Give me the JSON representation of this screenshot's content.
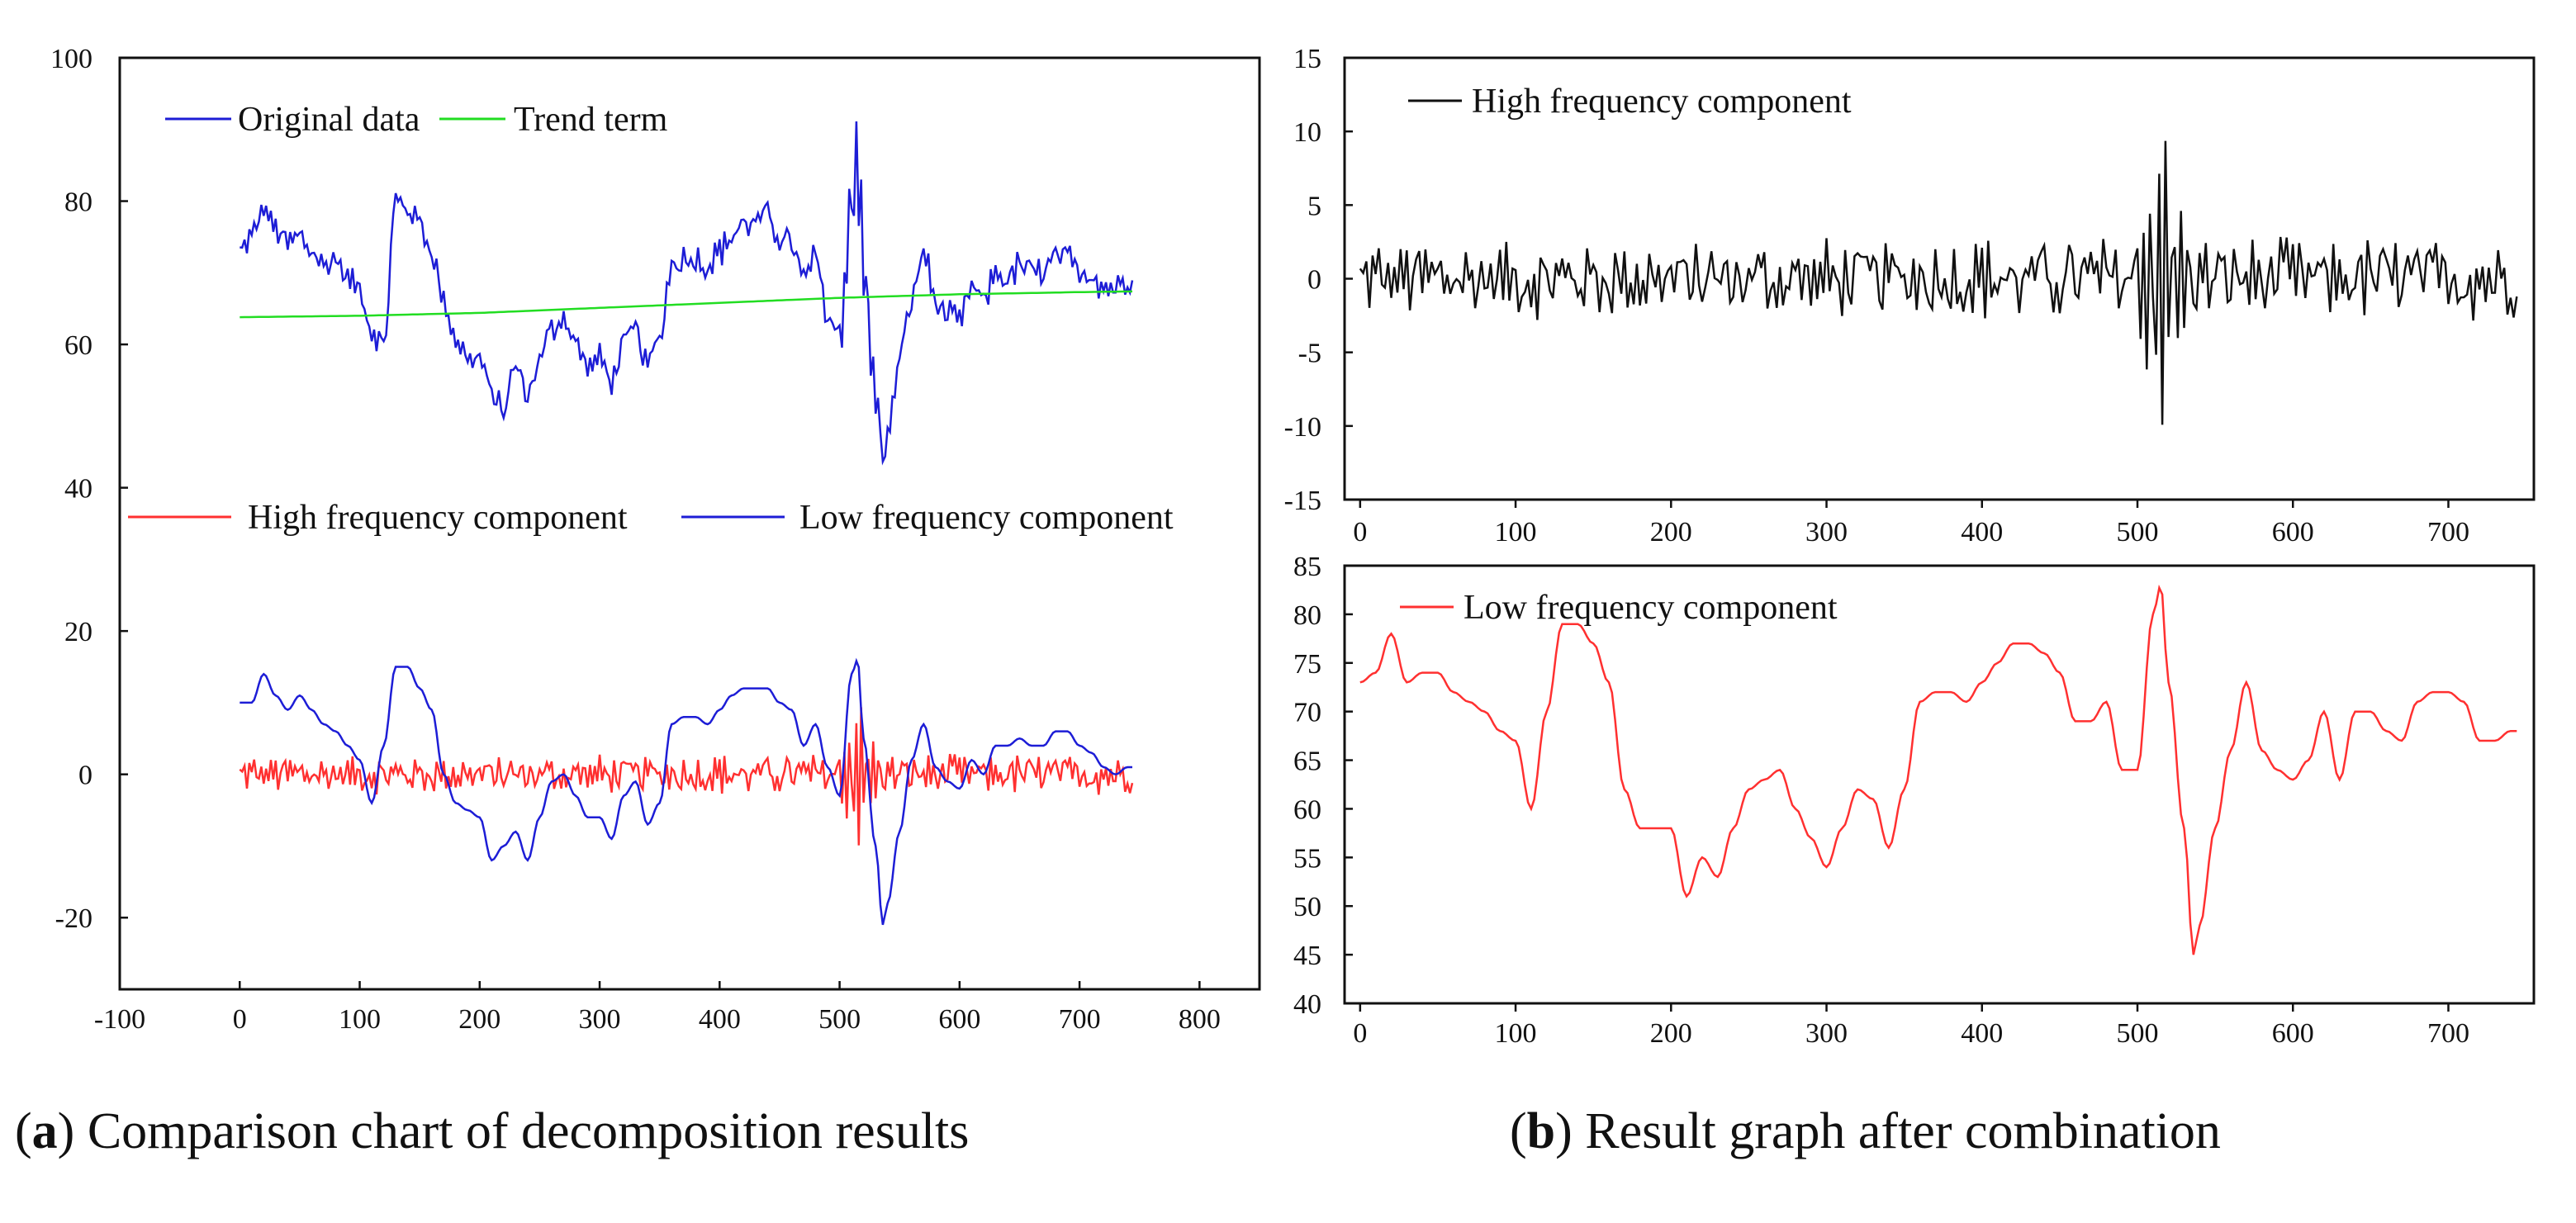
{
  "captions": {
    "a": {
      "letter": "a",
      "text": " Comparison chart of decomposition results"
    },
    "b": {
      "letter": "b",
      "text": " Result graph after combination"
    }
  },
  "colors": {
    "blue": "#1d1dd6",
    "green": "#22dd22",
    "red": "#ff3030",
    "black": "#111111"
  },
  "chart_data": [
    {
      "id": "a",
      "type": "line",
      "title": "",
      "xlabel": "",
      "ylabel": "",
      "xlim": [
        -100,
        850
      ],
      "ylim": [
        -30,
        100
      ],
      "xticks": [
        -100,
        0,
        100,
        200,
        300,
        400,
        500,
        600,
        700,
        800
      ],
      "yticks": [
        -20,
        0,
        20,
        40,
        60,
        80,
        100
      ],
      "legends": [
        {
          "label": "Original data",
          "color": "blue"
        },
        {
          "label": "Trend term",
          "color": "green"
        },
        {
          "label": "High frequency component",
          "color": "red"
        },
        {
          "label": "Low frequency component",
          "color": "blue"
        }
      ],
      "series": [
        {
          "name": "Original data",
          "color": "blue",
          "kind": "low_plus_high",
          "offset": 63,
          "x": [
            0,
            10,
            20,
            30,
            40,
            50,
            60,
            70,
            80,
            90,
            100,
            110,
            120,
            130,
            140,
            150,
            160,
            170,
            180,
            190,
            200,
            210,
            220,
            230,
            240,
            250,
            260,
            270,
            280,
            290,
            300,
            310,
            320,
            330,
            340,
            350,
            360,
            370,
            380,
            390,
            400,
            410,
            420,
            430,
            440,
            450,
            460,
            470,
            480,
            490,
            500,
            510,
            515,
            520,
            530,
            536,
            540,
            550,
            560,
            570,
            580,
            590,
            600,
            610,
            620,
            630,
            640,
            650,
            660,
            670,
            680,
            690,
            700,
            710,
            720,
            730,
            740,
            745
          ],
          "y": [
            73,
            75,
            79,
            76,
            74,
            75,
            73,
            71,
            72,
            69,
            68,
            62,
            60,
            80,
            79,
            77,
            73,
            66,
            61,
            58,
            58,
            53,
            51,
            57,
            53,
            58,
            62,
            64,
            60,
            57,
            58,
            55,
            60,
            62,
            57,
            61,
            71,
            72,
            72,
            71,
            73,
            75,
            77,
            77,
            78,
            75,
            74,
            69,
            72,
            64,
            61,
            80,
            86,
            70,
            53,
            45,
            47,
            58,
            66,
            73,
            66,
            64,
            63,
            68,
            66,
            70,
            69,
            71,
            70,
            70,
            72,
            72,
            70,
            70,
            68,
            68,
            69,
            70
          ]
        },
        {
          "name": "Trend term",
          "color": "green",
          "x": [
            0,
            100,
            200,
            300,
            400,
            500,
            600,
            700,
            745
          ],
          "y": [
            63.8,
            64.0,
            64.4,
            65.1,
            65.8,
            66.5,
            67.0,
            67.3,
            67.4
          ]
        },
        {
          "name": "High frequency component",
          "color": "red",
          "kind": "high",
          "x": [
            0,
            745
          ],
          "y": [
            0,
            0
          ]
        },
        {
          "name": "Low frequency component",
          "color": "blue",
          "kind": "low",
          "offset": 63,
          "x": [
            0,
            10,
            20,
            30,
            40,
            50,
            60,
            70,
            80,
            90,
            100,
            110,
            120,
            130,
            140,
            150,
            160,
            170,
            180,
            190,
            200,
            210,
            220,
            230,
            240,
            250,
            260,
            270,
            280,
            290,
            300,
            310,
            320,
            330,
            340,
            350,
            360,
            370,
            380,
            390,
            400,
            410,
            420,
            430,
            440,
            450,
            460,
            470,
            480,
            490,
            500,
            510,
            515,
            520,
            530,
            536,
            540,
            550,
            560,
            570,
            580,
            590,
            600,
            610,
            620,
            630,
            640,
            650,
            660,
            670,
            680,
            690,
            700,
            710,
            720,
            730,
            740,
            745
          ],
          "y": [
            10,
            10,
            14,
            11,
            9,
            11,
            9,
            7,
            6,
            4,
            2,
            -4,
            4,
            15,
            15,
            12,
            9,
            0,
            -4,
            -5,
            -6,
            -12,
            -10,
            -8,
            -12,
            -6,
            -1,
            0,
            -3,
            -6,
            -6,
            -9,
            -3,
            -1,
            -7,
            -4,
            7,
            8,
            8,
            7,
            9,
            11,
            12,
            12,
            12,
            10,
            9,
            4,
            7,
            1,
            -3,
            14,
            16,
            5,
            -10,
            -21,
            -18,
            -8,
            2,
            7,
            1,
            -1,
            -2,
            2,
            0,
            4,
            4,
            5,
            4,
            4,
            6,
            6,
            4,
            3,
            1,
            0,
            1,
            1
          ]
        }
      ]
    },
    {
      "id": "b-top",
      "type": "line",
      "title": "",
      "xlabel": "",
      "ylabel": "",
      "xlim": [
        -10,
        755
      ],
      "ylim": [
        -15,
        15
      ],
      "xticks": [
        0,
        100,
        200,
        300,
        400,
        500,
        600,
        700
      ],
      "yticks": [
        -15,
        -10,
        -5,
        0,
        5,
        10,
        15
      ],
      "legends": [
        {
          "label": "High frequency component",
          "color": "black"
        }
      ],
      "series": [
        {
          "name": "High frequency component",
          "color": "black",
          "kind": "high",
          "x": [
            0,
            745
          ],
          "y": [
            0,
            0
          ]
        }
      ]
    },
    {
      "id": "b-bottom",
      "type": "line",
      "title": "",
      "xlabel": "",
      "ylabel": "",
      "xlim": [
        -10,
        755
      ],
      "ylim": [
        40,
        85
      ],
      "xticks": [
        0,
        100,
        200,
        300,
        400,
        500,
        600,
        700
      ],
      "yticks": [
        40,
        45,
        50,
        55,
        60,
        65,
        70,
        75,
        80,
        85
      ],
      "legends": [
        {
          "label": "Low frequency component",
          "color": "red"
        }
      ],
      "series": [
        {
          "name": "Low frequency component",
          "color": "red",
          "kind": "smooth",
          "x": [
            0,
            10,
            20,
            30,
            40,
            50,
            60,
            70,
            80,
            90,
            100,
            110,
            120,
            130,
            140,
            150,
            160,
            170,
            180,
            190,
            200,
            210,
            220,
            230,
            240,
            250,
            260,
            270,
            280,
            290,
            300,
            310,
            320,
            330,
            340,
            350,
            360,
            370,
            380,
            390,
            400,
            410,
            420,
            430,
            440,
            450,
            460,
            470,
            480,
            490,
            500,
            510,
            515,
            520,
            530,
            536,
            540,
            550,
            560,
            570,
            580,
            590,
            600,
            610,
            620,
            630,
            640,
            650,
            660,
            670,
            680,
            690,
            700,
            710,
            720,
            730,
            740,
            745
          ],
          "y": [
            73,
            74,
            78,
            73,
            74,
            74,
            72,
            71,
            70,
            68,
            67,
            60,
            70,
            79,
            79,
            77,
            73,
            62,
            58,
            58,
            58,
            51,
            55,
            53,
            58,
            62,
            63,
            64,
            60,
            57,
            54,
            58,
            62,
            61,
            56,
            62,
            71,
            72,
            72,
            71,
            73,
            75,
            77,
            77,
            76,
            74,
            69,
            69,
            71,
            64,
            64,
            80,
            83,
            73,
            58,
            45,
            48,
            58,
            66,
            73,
            66,
            64,
            63,
            65,
            70,
            63,
            70,
            70,
            68,
            67,
            71,
            72,
            72,
            71,
            67,
            67,
            68,
            68
          ]
        }
      ]
    }
  ]
}
